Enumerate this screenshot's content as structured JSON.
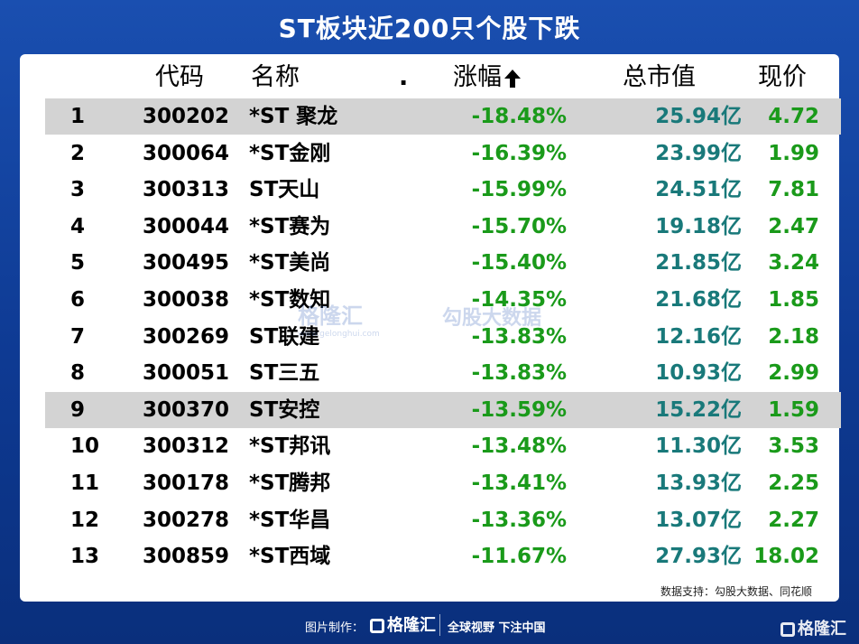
{
  "title": "ST板块近200只个股下跌",
  "headers": {
    "code": "代码",
    "name": "名称",
    "dot": ".",
    "change": "涨幅",
    "cap": "总市值",
    "price": "现价"
  },
  "chart_data": {
    "type": "table",
    "columns": [
      "",
      "代码",
      "名称",
      "涨幅",
      "总市值",
      "现价"
    ],
    "rows": [
      {
        "idx": "1",
        "code": "300202",
        "name": "*ST 聚龙",
        "change": "-18.48%",
        "cap": "25.94亿",
        "price": "4.72",
        "highlight": true
      },
      {
        "idx": "2",
        "code": "300064",
        "name": "*ST金刚",
        "change": "-16.39%",
        "cap": "23.99亿",
        "price": "1.99",
        "highlight": false
      },
      {
        "idx": "3",
        "code": "300313",
        "name": "ST天山",
        "change": "-15.99%",
        "cap": "24.51亿",
        "price": "7.81",
        "highlight": false
      },
      {
        "idx": "4",
        "code": "300044",
        "name": "*ST赛为",
        "change": "-15.70%",
        "cap": "19.18亿",
        "price": "2.47",
        "highlight": false
      },
      {
        "idx": "5",
        "code": "300495",
        "name": "*ST美尚",
        "change": "-15.40%",
        "cap": "21.85亿",
        "price": "3.24",
        "highlight": false
      },
      {
        "idx": "6",
        "code": "300038",
        "name": "*ST数知",
        "change": "-14.35%",
        "cap": "21.68亿",
        "price": "1.85",
        "highlight": false
      },
      {
        "idx": "7",
        "code": "300269",
        "name": "ST联建",
        "change": "-13.83%",
        "cap": "12.16亿",
        "price": "2.18",
        "highlight": false
      },
      {
        "idx": "8",
        "code": "300051",
        "name": "ST三五",
        "change": "-13.83%",
        "cap": "10.93亿",
        "price": "2.99",
        "highlight": false
      },
      {
        "idx": "9",
        "code": "300370",
        "name": "ST安控",
        "change": "-13.59%",
        "cap": "15.22亿",
        "price": "1.59",
        "highlight": true
      },
      {
        "idx": "10",
        "code": "300312",
        "name": "*ST邦讯",
        "change": "-13.48%",
        "cap": "11.30亿",
        "price": "3.53",
        "highlight": false
      },
      {
        "idx": "11",
        "code": "300178",
        "name": "*ST腾邦",
        "change": "-13.41%",
        "cap": "13.93亿",
        "price": "2.25",
        "highlight": false
      },
      {
        "idx": "12",
        "code": "300278",
        "name": "*ST华昌",
        "change": "-13.36%",
        "cap": "13.07亿",
        "price": "2.27",
        "highlight": false
      },
      {
        "idx": "13",
        "code": "300859",
        "name": "*ST西域",
        "change": "-11.67%",
        "cap": "27.93亿",
        "price": "18.02",
        "highlight": false
      }
    ]
  },
  "colors": {
    "change": "#1a9a1a",
    "cap": "#19797a",
    "price": "#1a9a1a",
    "highlight_row": "#d3d3d3",
    "background": "#0e3a93"
  },
  "source": "数据支持：勾股大数据、同花顺",
  "watermark": {
    "brand": "格隆汇",
    "url": "www.gelonghui.com",
    "partner": "勾股大数据"
  },
  "footer": {
    "made_by": "图片制作：",
    "logo": "格隆汇",
    "slogan": "全球视野 下注中国"
  },
  "corner_logo": "格隆汇"
}
